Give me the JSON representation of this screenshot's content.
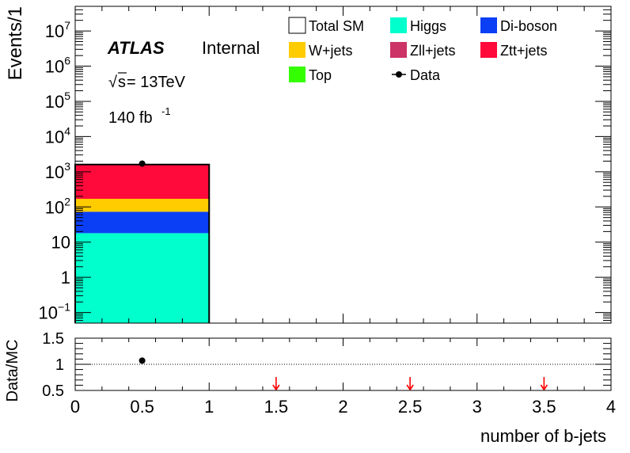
{
  "chart_data": [
    {
      "type": "bar",
      "stacked": true,
      "log_scale_y": true,
      "ylabel": "Events/1",
      "ylim": [
        0.05,
        50000000
      ],
      "xlim": [
        0,
        4
      ],
      "y_ticks": [
        {
          "value": 0.1,
          "base": "10",
          "exp": "−1"
        },
        {
          "value": 1,
          "base": "1",
          "exp": ""
        },
        {
          "value": 10,
          "base": "10",
          "exp": ""
        },
        {
          "value": 100,
          "base": "10",
          "exp": "2"
        },
        {
          "value": 1000,
          "base": "10",
          "exp": "3"
        },
        {
          "value": 10000,
          "base": "10",
          "exp": "4"
        },
        {
          "value": 100000,
          "base": "10",
          "exp": "5"
        },
        {
          "value": 1000000,
          "base": "10",
          "exp": "6"
        },
        {
          "value": 10000000,
          "base": "10",
          "exp": "7"
        }
      ],
      "bins": [
        [
          0,
          1
        ],
        [
          1,
          2
        ],
        [
          2,
          3
        ],
        [
          3,
          4
        ]
      ],
      "series": [
        {
          "name": "Higgs",
          "color": "#00ffcc",
          "values": [
            18,
            0,
            0,
            0
          ]
        },
        {
          "name": "Di-boson",
          "color": "#0a3ff5",
          "values": [
            55,
            0,
            0,
            0
          ]
        },
        {
          "name": "W+jets",
          "color": "#ffcc00",
          "values": [
            97,
            0,
            0,
            0
          ]
        },
        {
          "name": "Ztt+jets",
          "color": "#ff0a3a",
          "values": [
            1430,
            0,
            0,
            0
          ]
        },
        {
          "name": "Zll+jets",
          "color": "#cc3366",
          "values": [
            0,
            0,
            0,
            0
          ]
        },
        {
          "name": "Top",
          "color": "#33ff00",
          "values": [
            0,
            0,
            0,
            0
          ]
        }
      ],
      "total_sm": [
        1600,
        0,
        0,
        0
      ],
      "data": [
        {
          "x": 0.5,
          "y": 1700
        }
      ]
    },
    {
      "type": "scatter",
      "ylabel": "Data/MC",
      "xlabel": "number of b-jets",
      "xlim": [
        0,
        4
      ],
      "ylim": [
        0.5,
        1.5
      ],
      "y_ticks": [
        "0.5",
        "1",
        "1.5"
      ],
      "x_ticks": [
        "0",
        "0.5",
        "1",
        "1.5",
        "2",
        "2.5",
        "3",
        "3.5",
        "4"
      ],
      "reference_line": 1,
      "points": [
        {
          "x": 0.5,
          "y": 1.07
        }
      ],
      "out_of_range_arrows": [
        1.5,
        2.5,
        3.5
      ],
      "arrow_color": "#ff0000"
    }
  ],
  "labels": {
    "atlas": "ATLAS",
    "internal": "Internal",
    "sqrt_symbol": "√",
    "sqrt_arg": "s",
    "energy": " = 13TeV",
    "lumi_value": "140 fb",
    "lumi_exp": "-1"
  },
  "legend": [
    {
      "label": "Total SM",
      "kind": "box",
      "color": "#ffffff"
    },
    {
      "label": "Higgs",
      "kind": "box",
      "color": "#00ffcc"
    },
    {
      "label": "Di-boson",
      "kind": "box",
      "color": "#0a3ff5"
    },
    {
      "label": "W+jets",
      "kind": "box",
      "color": "#ffcc00"
    },
    {
      "label": "Zll+jets",
      "kind": "box",
      "color": "#cc3366"
    },
    {
      "label": "Ztt+jets",
      "kind": "box",
      "color": "#ff0a3a"
    },
    {
      "label": "Top",
      "kind": "box",
      "color": "#33ff00"
    },
    {
      "label": "Data",
      "kind": "marker",
      "color": "#000000"
    }
  ]
}
